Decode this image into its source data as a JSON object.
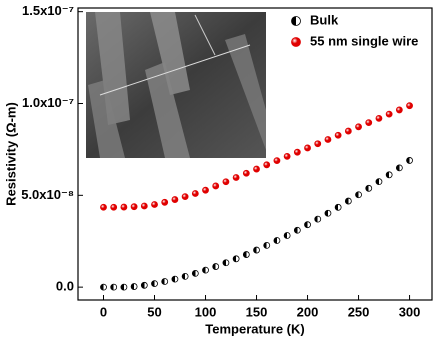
{
  "chart_data": {
    "type": "scatter",
    "x_label": "Temperature (K)",
    "y_label": "Resistivity (Ω-m)",
    "xlim": [
      -25,
      322
    ],
    "ylim": [
      -7e-09,
      1.52e-07
    ],
    "xticks": [
      0,
      50,
      100,
      150,
      200,
      250,
      300
    ],
    "yticks": [
      {
        "value": 0,
        "label": "0.0"
      },
      {
        "value": 5e-08,
        "label": "5.0x10⁻⁸"
      },
      {
        "value": 1e-07,
        "label": "1.0x10⁻⁷"
      },
      {
        "value": 1.5e-07,
        "label": "1.5x10⁻⁷"
      }
    ],
    "legend": "upper right",
    "x": [
      0,
      10,
      20,
      30,
      40,
      50,
      60,
      70,
      80,
      90,
      100,
      110,
      120,
      130,
      140,
      150,
      160,
      170,
      180,
      190,
      200,
      210,
      220,
      230,
      240,
      250,
      260,
      270,
      280,
      290,
      300
    ],
    "series": [
      {
        "name": "Bulk",
        "color": "#000000",
        "marker": "half",
        "values": [
          0,
          0,
          0,
          3.3e-10,
          1.01e-09,
          1.93e-09,
          3.06e-09,
          4.38e-09,
          5.86e-09,
          7.49e-09,
          9.28e-09,
          1.121e-08,
          1.327e-08,
          1.544e-08,
          1.775e-08,
          2.02e-08,
          2.274e-08,
          2.539e-08,
          2.813e-08,
          3.098e-08,
          3.4e-08,
          3.705e-08,
          4.022e-08,
          4.347e-08,
          4.687e-08,
          5.03e-08,
          5.382e-08,
          5.744e-08,
          6.118e-08,
          6.495e-08,
          6.9e-08
        ]
      },
      {
        "name": "55 nm single wire",
        "color": "#e00000",
        "marker": "filled",
        "values": [
          4.35e-08,
          4.35e-08,
          4.36e-08,
          4.38e-08,
          4.42e-08,
          4.5e-08,
          4.62e-08,
          4.77e-08,
          4.93e-08,
          5.1e-08,
          5.28e-08,
          5.51e-08,
          5.74e-08,
          5.97e-08,
          6.2e-08,
          6.43e-08,
          6.66e-08,
          6.89e-08,
          7.12e-08,
          7.35e-08,
          7.58e-08,
          7.81e-08,
          8.04e-08,
          8.27e-08,
          8.5e-08,
          8.73e-08,
          8.96e-08,
          9.19e-08,
          9.42e-08,
          9.65e-08,
          9.88e-08
        ]
      }
    ]
  }
}
